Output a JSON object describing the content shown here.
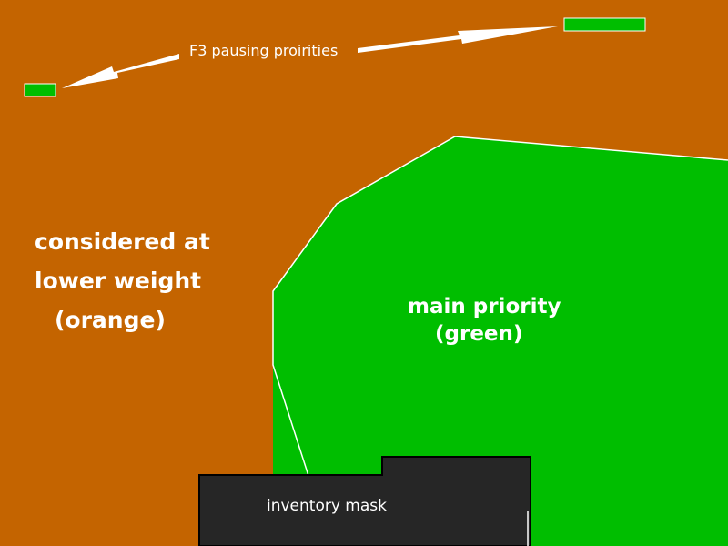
{
  "colors": {
    "background_orange": "#C46400",
    "priority_green": "#00BE00",
    "mask_dark": "#262626",
    "outline_white": "#FFFFFF",
    "mask_border": "#000000"
  },
  "labels": {
    "pausing_title": "F3 pausing proirities",
    "orange_line1": "considered at",
    "orange_line2": "lower weight",
    "orange_line3": "(orange)",
    "green_line1": "main priority",
    "green_line2": "(green)",
    "mask": "inventory mask"
  }
}
